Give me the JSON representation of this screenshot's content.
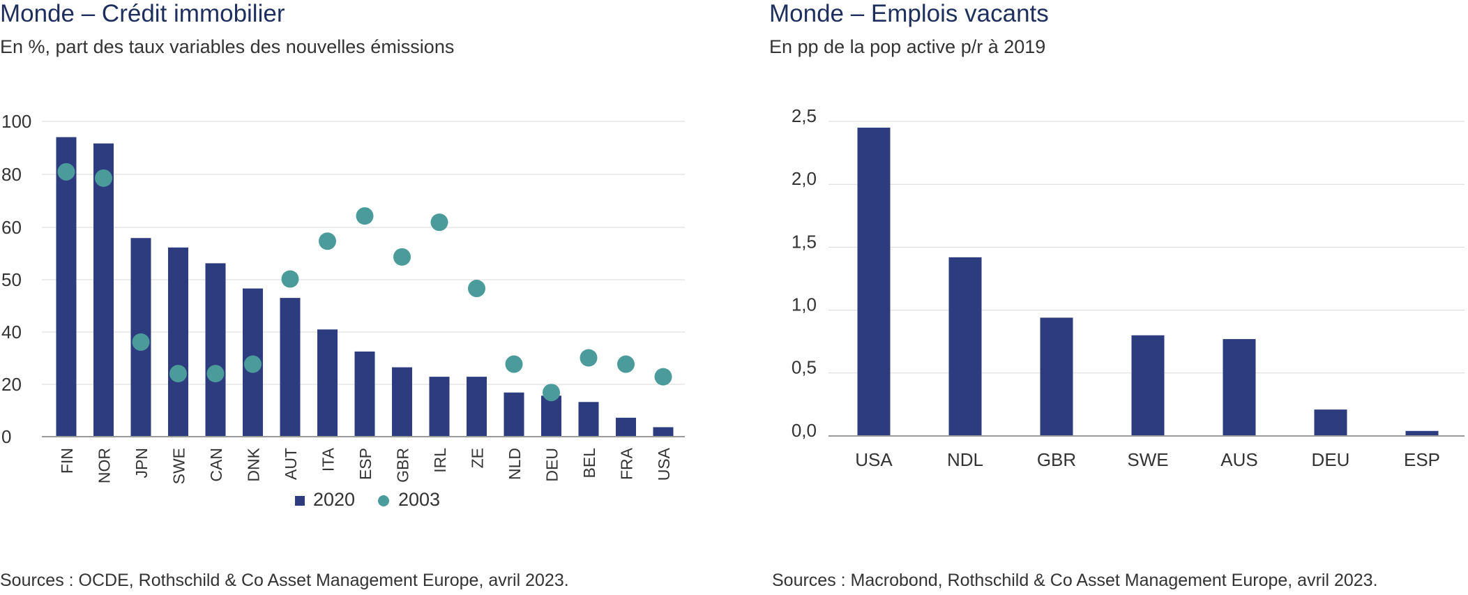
{
  "colors": {
    "bar": "#2d3c7f",
    "dot": "#4b9b9b",
    "title": "#1e2f5e",
    "grid": "#d9d9d9",
    "axis": "#9a9a9a"
  },
  "left": {
    "title": "Monde – Crédit immobilier",
    "subtitle": "En %, part des taux variables des nouvelles émissions",
    "source": "Sources : OCDE, Rothschild & Co Asset Management Europe, avril 2023."
  },
  "right": {
    "title": "Monde – Emplois vacants",
    "subtitle": "En pp de la pop active p/r à 2019",
    "source": "Sources : Macrobond, Rothschild & Co Asset Management Europe, avril 2023."
  },
  "chart_data": [
    {
      "type": "bar",
      "title": "Monde – Crédit immobilier",
      "subtitle": "En %, part des taux variables des nouvelles émissions",
      "categories": [
        "FIN",
        "NOR",
        "JPN",
        "SWE",
        "CAN",
        "DNK",
        "AUT",
        "ITA",
        "ESP",
        "GBR",
        "IRL",
        "ZE",
        "NLD",
        "DEU",
        "BEL",
        "FRA",
        "USA"
      ],
      "series": [
        {
          "name": "2020",
          "kind": "bar",
          "values": [
            95,
            93,
            63,
            60,
            55,
            47,
            44,
            34,
            27,
            22,
            19,
            19,
            14,
            13,
            11,
            6,
            3
          ]
        },
        {
          "name": "2003",
          "kind": "dot",
          "values": [
            84,
            82,
            30,
            20,
            20,
            23,
            50,
            62,
            70,
            57,
            68,
            47,
            23,
            14,
            25,
            23,
            19
          ]
        }
      ],
      "y_tick_labels": [
        "0",
        "20",
        "40",
        "50",
        "60",
        "80",
        "100"
      ],
      "ylim": [
        0,
        100
      ],
      "grid": true,
      "legend": "bottom-center"
    },
    {
      "type": "bar",
      "title": "Monde – Emplois vacants",
      "subtitle": "En pp de la pop active p/r à 2019",
      "categories": [
        "USA",
        "NDL",
        "GBR",
        "SWE",
        "AUS",
        "DEU",
        "ESP"
      ],
      "values": [
        2.45,
        1.42,
        0.94,
        0.8,
        0.77,
        0.21,
        0.04
      ],
      "y_tick_labels": [
        "0,0",
        "0,5",
        "1,0",
        "1,5",
        "2,0",
        "2,5"
      ],
      "ylim": [
        0,
        2.5
      ],
      "grid": true
    }
  ]
}
